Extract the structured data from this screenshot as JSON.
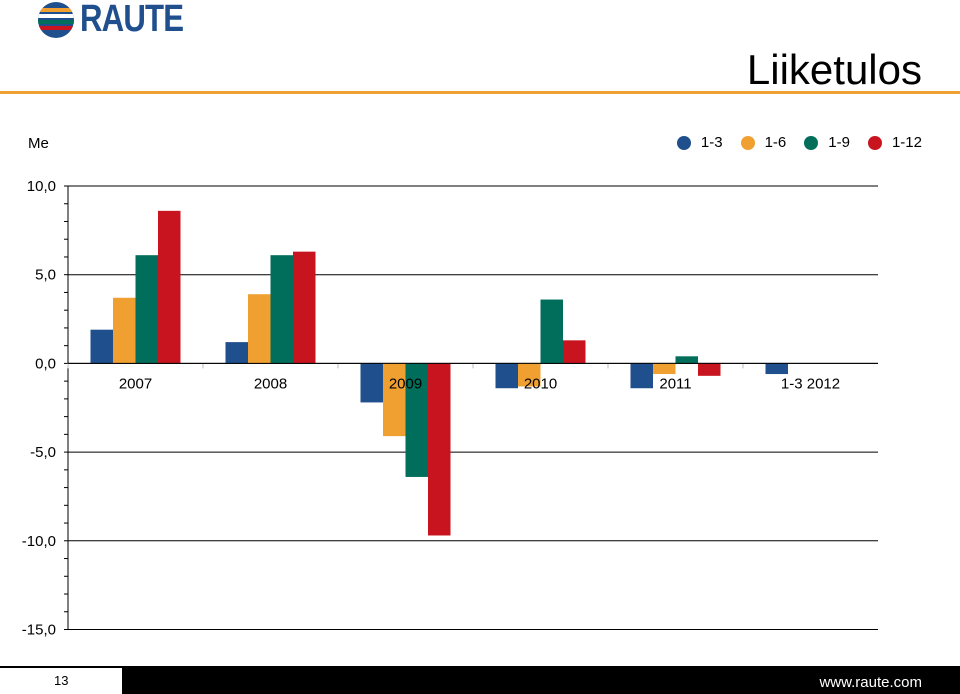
{
  "brand": {
    "name": "RAUTE",
    "stripe_colors": [
      "#1f4f8c",
      "#f0a030",
      "#006e5a",
      "#c8141e"
    ]
  },
  "title": "Liiketulos",
  "unit_label": "Me",
  "footer": {
    "page_number": "13",
    "website": "www.raute.com"
  },
  "chart_data": {
    "type": "bar",
    "categories": [
      "2007",
      "2008",
      "2009",
      "2010",
      "2011",
      "1-3 2012"
    ],
    "series": [
      {
        "name": "1-3",
        "color": "#1f4f8c",
        "values": [
          1.9,
          1.2,
          -2.2,
          -1.4,
          -1.4,
          -0.6
        ]
      },
      {
        "name": "1-6",
        "color": "#f0a030",
        "values": [
          3.7,
          3.9,
          -4.1,
          -1.3,
          -0.6,
          null
        ]
      },
      {
        "name": "1-9",
        "color": "#006e5a",
        "values": [
          6.1,
          6.1,
          -6.4,
          3.6,
          0.4,
          null
        ]
      },
      {
        "name": "1-12",
        "color": "#c8141e",
        "values": [
          8.6,
          6.3,
          -9.7,
          1.3,
          -0.7,
          null
        ]
      }
    ],
    "ylim": [
      -15,
      10
    ],
    "yticks": [
      10,
      5,
      0,
      -5,
      -10,
      -15
    ],
    "ytick_labels": [
      "10,0",
      "5,0",
      "0,0",
      "-5,0",
      "-10,0",
      "-15,0"
    ],
    "grid": "horizontal",
    "legend_position": "top-right"
  }
}
